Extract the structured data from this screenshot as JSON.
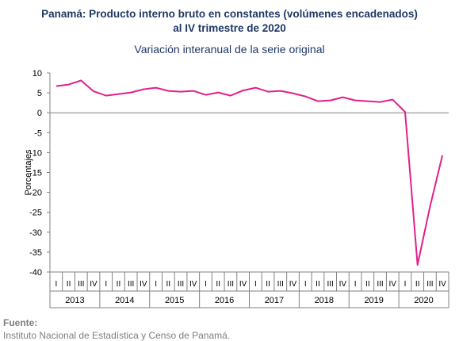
{
  "chart_data": {
    "type": "line",
    "title": "Panamá: Producto interno bruto en constantes (volúmenes encadenados)",
    "title_line2": "al IV trimestre de 2020",
    "subtitle": "Variación interanual de la serie original",
    "ylabel": "Porcentajes",
    "ylim": [
      -40,
      10
    ],
    "yticks": [
      10,
      5,
      0,
      -5,
      -10,
      -15,
      -20,
      -25,
      -30,
      -35,
      -40
    ],
    "quarter_labels": [
      "I",
      "II",
      "III",
      "IV"
    ],
    "years": [
      "2013",
      "2014",
      "2015",
      "2016",
      "2017",
      "2018",
      "2019",
      "2020"
    ],
    "series": [
      {
        "color": "#e0218a",
        "values": [
          6.7,
          7.1,
          8.1,
          5.4,
          4.3,
          4.7,
          5.1,
          5.9,
          6.3,
          5.5,
          5.3,
          5.5,
          4.5,
          5.1,
          4.3,
          5.6,
          6.3,
          5.3,
          5.5,
          4.9,
          4.1,
          2.9,
          3.1,
          3.9,
          3.1,
          2.9,
          2.7,
          3.3,
          0.2,
          -38.2,
          -23.6,
          -10.7
        ]
      }
    ],
    "grid": false,
    "legend": "none"
  },
  "source": {
    "label": "Fuente:",
    "text": "Instituto Nacional de Estadística y Censo de Panamá."
  }
}
